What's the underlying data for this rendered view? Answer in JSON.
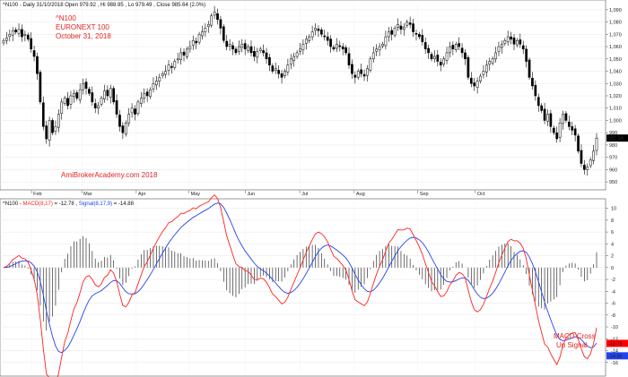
{
  "price_header": {
    "symbol": "^N100",
    "interval": "Daily",
    "date": "31/10/2018",
    "open_label": "Open",
    "open": "979.92",
    "hi_label": "Hi",
    "hi": "988.95",
    "lo_label": "Lo",
    "lo": "979.49",
    "close_label": "Close",
    "close": "985.64",
    "change": "(2.0%)"
  },
  "macd_header": {
    "symbol": "^N100",
    "macd_label": "MACD(8,17)",
    "macd_value": "-12.78",
    "signal_label": "Signal(8,17,9)",
    "signal_value": "-14.88"
  },
  "annotations": {
    "title_line1": "^N100",
    "title_line2": "EURONEXT 100",
    "title_line3": "October 31, 2018",
    "watermark": "AmiBrokerAcademy.com  2018",
    "signal_line1": "MACD Cross",
    "signal_line2": "Up Signal"
  },
  "colors": {
    "macd": "#ff2222",
    "signal": "#2244ee",
    "histogram": "#333333",
    "candle": "#000000",
    "price_marker": "#000000",
    "macd_marker": "#ff0000",
    "signal_marker": "#2244ee",
    "annotation": "#e22222"
  },
  "chart_data": [
    {
      "type": "candlestick",
      "title": "^N100 - Daily 31/10/2018",
      "x_labels": [
        "Feb",
        "Mar",
        "Apr",
        "May",
        "Jun",
        "Jul",
        "Aug",
        "Sep",
        "Oct"
      ],
      "y_ticks": [
        "950",
        "960",
        "970",
        "980",
        "990",
        "1,000",
        "1,010",
        "1,020",
        "1,030",
        "1,040",
        "1,050",
        "1,060",
        "1,070",
        "1,080",
        "1,090"
      ],
      "ylim": [
        945,
        1095
      ],
      "last_value": "985.64",
      "closes": [
        1065,
        1067,
        1070,
        1073,
        1072,
        1074,
        1068,
        1070,
        1066,
        1058,
        1052,
        1038,
        1015,
        995,
        985,
        1000,
        990,
        995,
        1005,
        1015,
        1018,
        1012,
        1020,
        1022,
        1018,
        1025,
        1030,
        1026,
        1022,
        1015,
        1010,
        1012,
        1018,
        1024,
        1020,
        1026,
        1015,
        1005,
        995,
        990,
        998,
        1005,
        1010,
        1005,
        1015,
        1018,
        1022,
        1020,
        1025,
        1030,
        1032,
        1035,
        1038,
        1040,
        1045,
        1043,
        1048,
        1050,
        1055,
        1053,
        1058,
        1060,
        1065,
        1063,
        1070,
        1072,
        1075,
        1078,
        1085,
        1088,
        1082,
        1075,
        1065,
        1060,
        1062,
        1058,
        1055,
        1060,
        1062,
        1058,
        1060,
        1055,
        1052,
        1056,
        1058,
        1055,
        1050,
        1045,
        1040,
        1042,
        1038,
        1035,
        1040,
        1045,
        1050,
        1052,
        1055,
        1058,
        1062,
        1066,
        1068,
        1072,
        1075,
        1073,
        1070,
        1068,
        1065,
        1060,
        1058,
        1062,
        1060,
        1058,
        1055,
        1045,
        1038,
        1035,
        1040,
        1038,
        1036,
        1042,
        1050,
        1055,
        1058,
        1060,
        1062,
        1068,
        1072,
        1070,
        1075,
        1078,
        1074,
        1076,
        1080,
        1078,
        1072,
        1070,
        1068,
        1064,
        1058,
        1055,
        1050,
        1052,
        1048,
        1045,
        1050,
        1055,
        1060,
        1058,
        1062,
        1060,
        1055,
        1050,
        1035,
        1030,
        1028,
        1032,
        1036,
        1040,
        1045,
        1048,
        1050,
        1055,
        1060,
        1062,
        1065,
        1068,
        1066,
        1062,
        1065,
        1062,
        1058,
        1048,
        1035,
        1028,
        1020,
        1012,
        1008,
        1000,
        1005,
        995,
        990,
        985,
        998,
        1005,
        1000,
        995,
        992,
        988,
        975,
        965,
        960,
        962,
        968,
        975,
        985.64
      ]
    },
    {
      "type": "line",
      "title": "MACD(8,17) / Signal(8,17,9)",
      "x_labels": [
        "Feb",
        "Mar",
        "Apr",
        "May",
        "Jun",
        "Jul",
        "Aug",
        "Sep",
        "Oct"
      ],
      "y_ticks": [
        "10",
        "8",
        "6",
        "4",
        "2",
        "0",
        "-2",
        "-4",
        "-6",
        "-8",
        "-10",
        "-12",
        "-14",
        "-16"
      ],
      "ylim": [
        -18,
        11
      ],
      "series": [
        {
          "name": "MACD(8,17)",
          "last_value": "-12.78"
        },
        {
          "name": "Signal(8,17,9)",
          "last_value": "-14.88"
        }
      ]
    }
  ]
}
